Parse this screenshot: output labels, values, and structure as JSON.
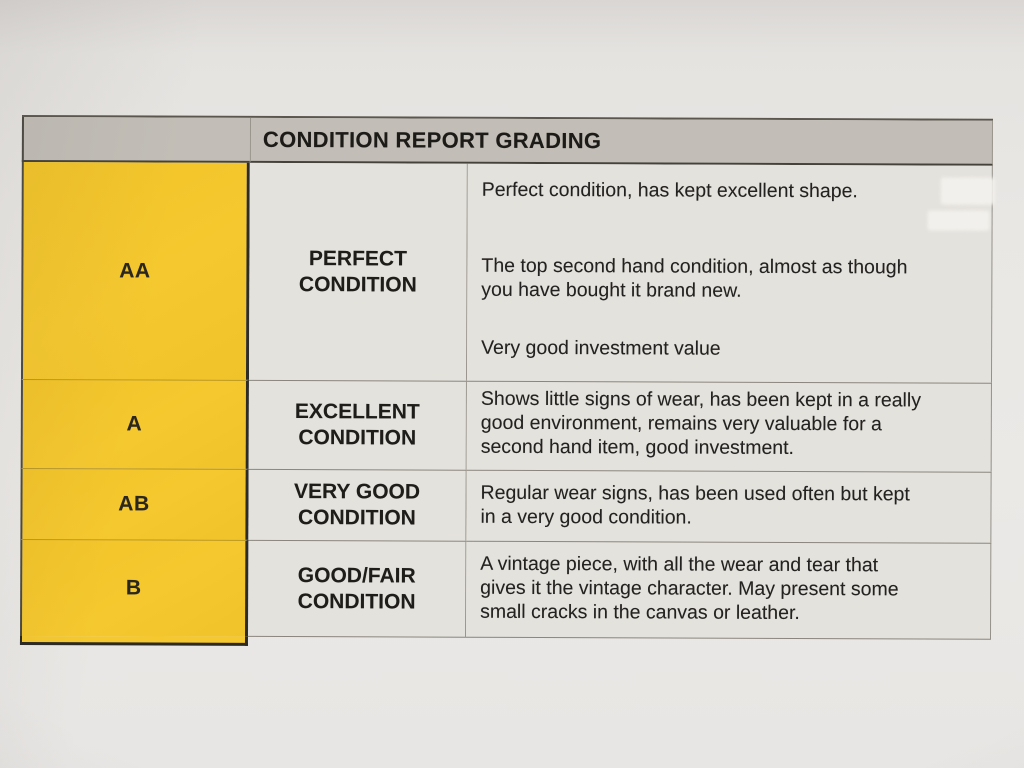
{
  "colors": {
    "paper": "#EAE8E5",
    "header_bg": "#C2BEB7",
    "cell_bg": "#E4E2DD",
    "grade_bg": "#F5C82F",
    "border_dark": "#2E2C27",
    "border_light": "#8A867E",
    "text": "#26231F"
  },
  "table": {
    "title": "CONDITION REPORT GRADING",
    "rows": [
      {
        "grade": "AA",
        "condition": "PERFECT\nCONDITION",
        "paragraphs": [
          "Perfect condition, has kept excellent shape.",
          "The top second hand condition, almost as though\nyou have bought it brand new.",
          "Very good investment value"
        ]
      },
      {
        "grade": "A",
        "condition": "EXCELLENT\nCONDITION",
        "paragraphs": [
          "Shows little signs of wear, has been kept in a really\ngood environment, remains very valuable for a\nsecond hand item, good investment."
        ]
      },
      {
        "grade": "AB",
        "condition": "VERY GOOD\nCONDITION",
        "paragraphs": [
          "Regular wear signs, has been used often but kept\nin a very good condition."
        ]
      },
      {
        "grade": "B",
        "condition": "GOOD/FAIR\nCONDITION",
        "paragraphs": [
          "A vintage piece, with all the wear and tear that\ngives it the vintage character. May present some\nsmall cracks in the canvas or leather."
        ]
      }
    ]
  }
}
